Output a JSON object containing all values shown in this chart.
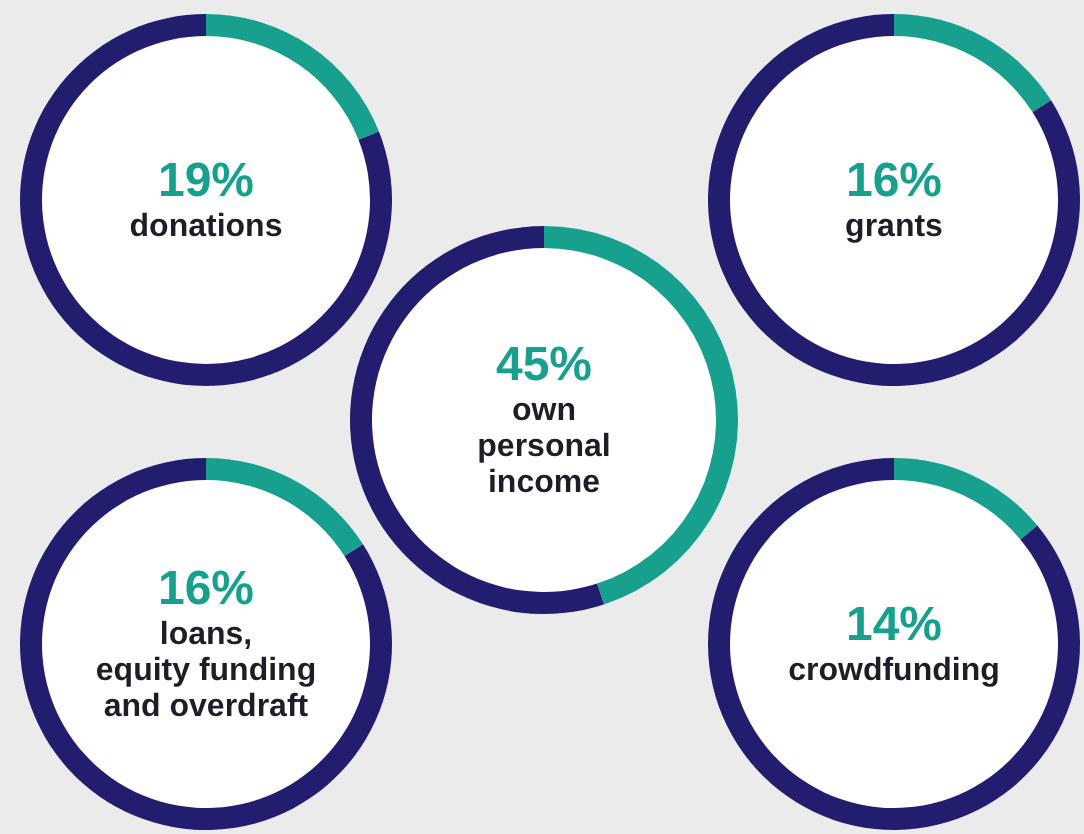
{
  "chart_data": [
    {
      "type": "donut",
      "categories": [
        "donations",
        null
      ],
      "values": [
        19,
        81
      ],
      "colors": [
        "#17a08e",
        "#231d70"
      ],
      "value_labels": [
        "19%",
        null
      ]
    },
    {
      "type": "donut",
      "categories": [
        "grants",
        null
      ],
      "values": [
        16,
        84
      ],
      "colors": [
        "#17a08e",
        "#231d70"
      ],
      "value_labels": [
        "16%",
        null
      ]
    },
    {
      "type": "donut",
      "categories": [
        "own\npersonal\nincome",
        null
      ],
      "values": [
        45,
        55
      ],
      "colors": [
        "#17a08e",
        "#231d70"
      ],
      "value_labels": [
        "45%",
        null
      ]
    },
    {
      "type": "donut",
      "categories": [
        "loans,\nequity funding\nand overdraft",
        null
      ],
      "values": [
        16,
        84
      ],
      "colors": [
        "#17a08e",
        "#231d70"
      ],
      "value_labels": [
        "16%",
        null
      ]
    },
    {
      "type": "donut",
      "categories": [
        "crowdfunding",
        null
      ],
      "values": [
        14,
        86
      ],
      "colors": [
        "#17a08e",
        "#231d70"
      ],
      "value_labels": [
        "14%",
        null
      ]
    }
  ]
}
